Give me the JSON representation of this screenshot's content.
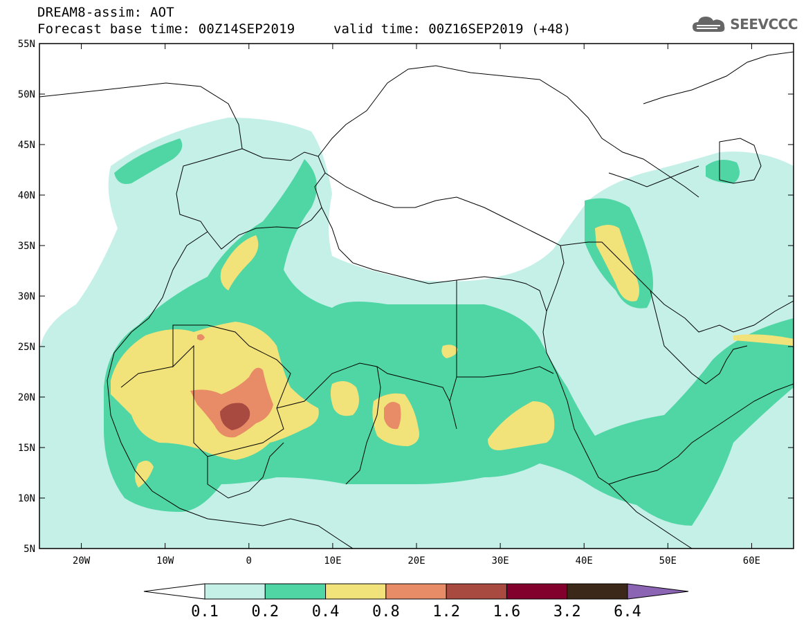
{
  "header": {
    "title": "DREAM8-assim: AOT",
    "base_time": "Forecast base time: 00Z14SEP2019",
    "valid_time": "valid time: 00Z16SEP2019 (+48)"
  },
  "logo": {
    "text": "SEEVCCC",
    "icon": "cloud-icon"
  },
  "map": {
    "lat_labels": [
      "55N",
      "50N",
      "45N",
      "40N",
      "35N",
      "30N",
      "25N",
      "20N",
      "15N",
      "10N",
      "5N"
    ],
    "lat_values": [
      55,
      50,
      45,
      40,
      35,
      30,
      25,
      20,
      15,
      10,
      5
    ],
    "lon_labels": [
      "20W",
      "10W",
      "0",
      "10E",
      "20E",
      "30E",
      "40E",
      "50E",
      "60E"
    ],
    "lon_values": [
      -20,
      -10,
      0,
      10,
      20,
      30,
      40,
      50,
      60
    ],
    "extent": {
      "lon_min": -25,
      "lon_max": 65,
      "lat_min": 5,
      "lat_max": 55
    }
  },
  "colorbar": {
    "labels": [
      "0.1",
      "0.2",
      "0.4",
      "0.8",
      "1.2",
      "1.6",
      "3.2",
      "6.4"
    ],
    "colors": [
      "#ffffff",
      "#c4f0e8",
      "#4fd6a4",
      "#f2e27a",
      "#e88c68",
      "#a84a40",
      "#82002c",
      "#3c2818",
      "#8c64b4"
    ]
  },
  "colors": {
    "level1": "#c4f0e8",
    "level2": "#4fd6a4",
    "level3": "#f2e27a",
    "level4": "#e88c68",
    "level5": "#a84a40"
  }
}
